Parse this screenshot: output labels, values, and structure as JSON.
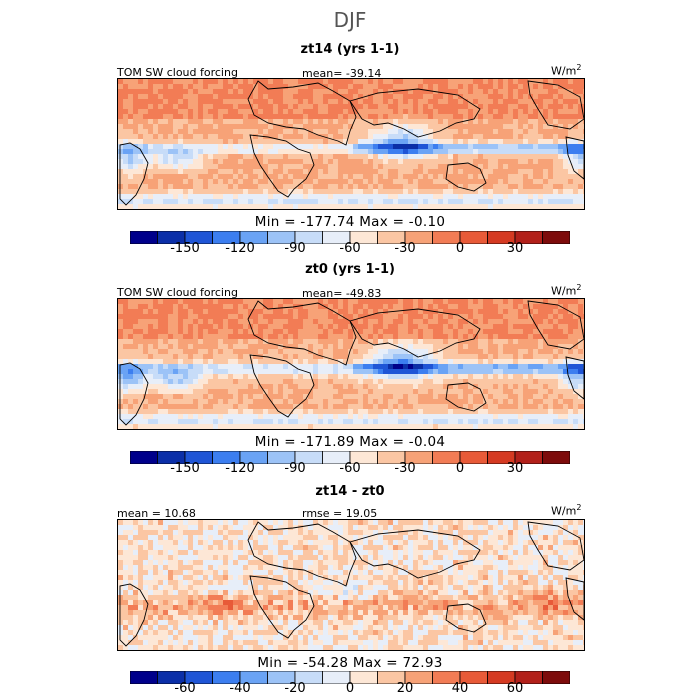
{
  "season": "DJF",
  "panels": [
    {
      "title": "zt14 (yrs 1-1)",
      "left_label": "TOM SW cloud forcing",
      "center_label": "mean= -39.14",
      "units": "W/m",
      "units_sup": "2",
      "min_max": "Min = -177.74  Max =   -0.10"
    },
    {
      "title": "zt0 (yrs 1-1)",
      "left_label": "TOM SW cloud forcing",
      "center_label": "mean= -49.83",
      "units": "W/m",
      "units_sup": "2",
      "min_max": "Min = -171.89  Max =   -0.04"
    },
    {
      "title": "zt14 - zt0",
      "left_label": "mean =  10.68",
      "center_label": "rmse =  19.05",
      "units": "W/m",
      "units_sup": "2",
      "min_max": "Min = -54.28  Max =   72.93"
    }
  ],
  "colorbars": [
    {
      "ticks": [
        "-150",
        "-120",
        "-90",
        "-60",
        "-30",
        "0",
        "30"
      ]
    },
    {
      "ticks": [
        "-150",
        "-120",
        "-90",
        "-60",
        "-30",
        "0",
        "30"
      ]
    },
    {
      "ticks": [
        "-60",
        "-40",
        "-20",
        "0",
        "20",
        "40",
        "60"
      ]
    }
  ],
  "chart_data": {
    "type": "heatmap",
    "colors": [
      "#00008b",
      "#0b2fa8",
      "#1f55d6",
      "#3c7ef0",
      "#6aa3f5",
      "#9cc3f7",
      "#c7dcf8",
      "#e7eef9",
      "#fde7d6",
      "#fbc6a3",
      "#f7a277",
      "#f27c55",
      "#e85a38",
      "#d53a22",
      "#b2201a",
      "#7d0b0b"
    ],
    "maps": [
      {
        "name": "zt14 (yrs 1-1)",
        "mean": -39.14,
        "min": -177.74,
        "max": -0.1,
        "units": "W/m2",
        "color_range": [
          -180,
          60
        ]
      },
      {
        "name": "zt0 (yrs 1-1)",
        "mean": -49.83,
        "min": -171.89,
        "max": -0.04,
        "units": "W/m2",
        "color_range": [
          -180,
          60
        ]
      },
      {
        "name": "zt14 - zt0",
        "mean": 10.68,
        "rmse": 19.05,
        "min": -54.28,
        "max": 72.93,
        "units": "W/m2",
        "color_range": [
          -80,
          80
        ]
      }
    ]
  }
}
